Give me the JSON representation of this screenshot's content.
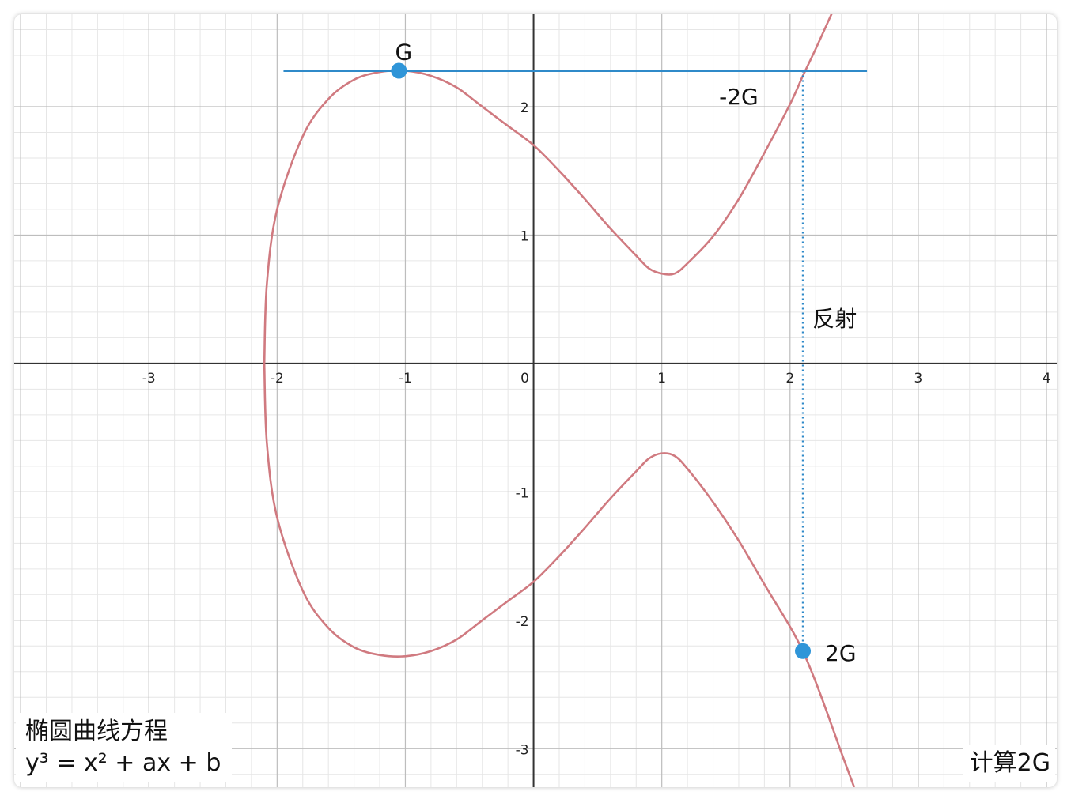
{
  "chart_data": {
    "type": "line",
    "x_ticks": [
      "-3",
      "-2",
      "-1",
      "0",
      "1",
      "2",
      "3",
      "4"
    ],
    "y_ticks": [
      "2",
      "1",
      "-1",
      "-2",
      "-3"
    ],
    "xlim": [
      -4.05,
      4.08
    ],
    "ylim": [
      -3.3,
      2.72
    ],
    "grid": true,
    "curve": {
      "name": "elliptic-curve",
      "color": "#d07a80",
      "upper": [
        [
          -2.1,
          0
        ],
        [
          -2.08,
          0.62
        ],
        [
          -2.0,
          1.2
        ],
        [
          -1.8,
          1.77
        ],
        [
          -1.6,
          2.06
        ],
        [
          -1.4,
          2.21
        ],
        [
          -1.2,
          2.27
        ],
        [
          -1.0,
          2.28
        ],
        [
          -0.8,
          2.24
        ],
        [
          -0.6,
          2.15
        ],
        [
          -0.4,
          2.0
        ],
        [
          -0.2,
          1.85
        ],
        [
          0.0,
          1.7
        ],
        [
          0.2,
          1.5
        ],
        [
          0.4,
          1.28
        ],
        [
          0.6,
          1.05
        ],
        [
          0.8,
          0.84
        ],
        [
          0.9,
          0.74
        ],
        [
          1.0,
          0.7
        ],
        [
          1.1,
          0.7
        ],
        [
          1.2,
          0.78
        ],
        [
          1.4,
          0.99
        ],
        [
          1.6,
          1.28
        ],
        [
          1.8,
          1.64
        ],
        [
          2.0,
          2.02
        ],
        [
          2.1,
          2.24
        ],
        [
          2.2,
          2.45
        ],
        [
          2.3,
          2.67
        ],
        [
          2.35,
          2.78
        ]
      ],
      "lower": [
        [
          -2.1,
          0
        ],
        [
          -2.08,
          -0.62
        ],
        [
          -2.0,
          -1.2
        ],
        [
          -1.8,
          -1.77
        ],
        [
          -1.6,
          -2.06
        ],
        [
          -1.4,
          -2.21
        ],
        [
          -1.2,
          -2.27
        ],
        [
          -1.0,
          -2.28
        ],
        [
          -0.8,
          -2.24
        ],
        [
          -0.6,
          -2.15
        ],
        [
          -0.4,
          -2.0
        ],
        [
          -0.2,
          -1.85
        ],
        [
          0.0,
          -1.7
        ],
        [
          0.2,
          -1.5
        ],
        [
          0.4,
          -1.28
        ],
        [
          0.6,
          -1.05
        ],
        [
          0.8,
          -0.84
        ],
        [
          0.9,
          -0.74
        ],
        [
          1.0,
          -0.7
        ],
        [
          1.1,
          -0.72
        ],
        [
          1.2,
          -0.82
        ],
        [
          1.4,
          -1.08
        ],
        [
          1.6,
          -1.38
        ],
        [
          1.8,
          -1.72
        ],
        [
          2.0,
          -2.05
        ],
        [
          2.1,
          -2.24
        ],
        [
          2.2,
          -2.48
        ],
        [
          2.3,
          -2.75
        ],
        [
          2.4,
          -3.03
        ],
        [
          2.5,
          -3.3
        ]
      ]
    },
    "tangent": {
      "color": "#2f8ac9",
      "y": 2.28,
      "x_from": -1.95,
      "x_to": 2.6
    },
    "reflection": {
      "color": "#2f8ac9",
      "x": 2.1,
      "y_from": 2.28,
      "y_to": -2.24
    },
    "points": [
      {
        "label": "G",
        "x": -1.05,
        "y": 2.28,
        "color": "#2f95d8"
      },
      {
        "label": "2G",
        "x": 2.1,
        "y": -2.24,
        "color": "#2f95d8"
      }
    ],
    "annotations": {
      "neg2g": {
        "text": "-2G",
        "x": 1.6,
        "y": 2.08
      },
      "reflect": {
        "text": "反射",
        "x": 2.2,
        "y": 0.35
      }
    }
  },
  "captions": {
    "title": "椭圆曲线方程",
    "equation": "y³ = x² + ax + b",
    "corner": "计算2G"
  }
}
